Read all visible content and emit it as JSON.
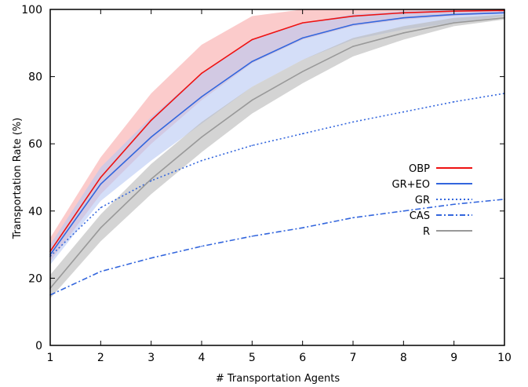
{
  "chart_data": {
    "type": "line",
    "xlabel": "# Transportation Agents",
    "ylabel": "Transportation Rate (%)",
    "xlim": [
      1,
      10
    ],
    "ylim": [
      0,
      100
    ],
    "xticks": [
      "1",
      "2",
      "3",
      "4",
      "5",
      "6",
      "7",
      "8",
      "9",
      "10"
    ],
    "yticks": [
      "0",
      "20",
      "40",
      "60",
      "80",
      "100"
    ],
    "grid": false,
    "legend_position": "right",
    "x": [
      1,
      2,
      3,
      4,
      5,
      6,
      7,
      8,
      9,
      10
    ],
    "series": [
      {
        "name": "OBP",
        "color": "#ee1111",
        "style": "solid",
        "values": [
          28,
          50,
          67,
          81,
          91,
          96,
          98,
          99,
          99.5,
          99.7
        ],
        "band_lower": [
          25,
          45,
          60,
          73,
          84,
          91,
          95,
          97,
          98,
          99
        ],
        "band_upper": [
          32,
          56,
          75,
          89.5,
          98,
          100,
          100,
          100,
          100,
          100
        ],
        "band_color": "#f8a8a8"
      },
      {
        "name": "GR+EO",
        "color": "#3366dd",
        "style": "solid",
        "values": [
          27,
          48,
          62,
          74,
          84.5,
          91.5,
          95.5,
          97.5,
          98.5,
          99
        ],
        "band_lower": [
          24,
          43,
          55,
          66,
          77,
          85,
          91,
          94,
          96,
          98
        ],
        "band_upper": [
          30,
          53,
          68,
          81,
          91,
          96,
          98.5,
          99.5,
          100,
          100
        ],
        "band_color": "#b8c8f4"
      },
      {
        "name": "GR",
        "color": "#3366dd",
        "style": "dotted",
        "values": [
          26.5,
          41,
          49,
          55,
          59.5,
          63,
          66.5,
          69.5,
          72.5,
          75
        ]
      },
      {
        "name": "CAS",
        "color": "#3366dd",
        "style": "dashdot",
        "values": [
          15,
          22,
          26,
          29.5,
          32.5,
          35,
          38,
          40,
          42,
          43.5
        ]
      },
      {
        "name": "R",
        "color": "#999999",
        "style": "solid",
        "values": [
          17,
          35,
          49.5,
          62,
          73,
          81.5,
          89,
          93,
          96,
          97.5
        ],
        "band_lower": [
          14,
          31,
          45,
          57.5,
          69,
          78,
          86,
          91,
          95,
          97
        ],
        "band_upper": [
          21,
          39,
          54,
          66.5,
          77,
          85,
          91.5,
          95,
          97.5,
          98.5
        ],
        "band_color": "#b8b8b8"
      }
    ]
  }
}
